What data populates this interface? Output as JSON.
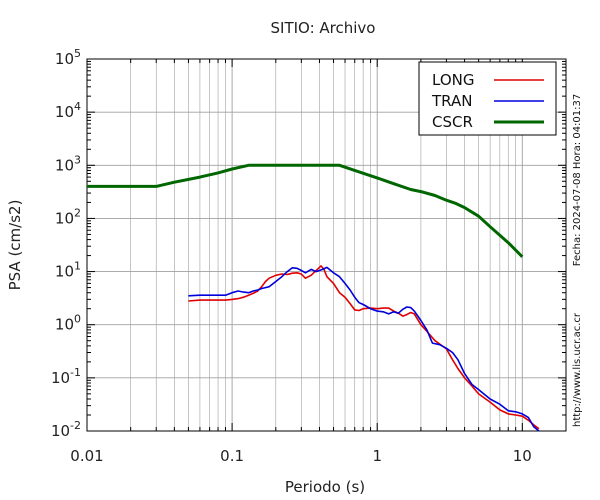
{
  "chart_data": {
    "type": "line",
    "title": "SITIO: Archivo",
    "xlabel": "Periodo (s)",
    "ylabel": "PSA (cm/s2)",
    "xscale": "log",
    "yscale": "log",
    "xlim": [
      0.01,
      20
    ],
    "ylim": [
      0.01,
      100000
    ],
    "grid": true,
    "legend_position": "top-right",
    "x_ticks": [
      {
        "value": 0.01,
        "label": "0.01"
      },
      {
        "value": 0.1,
        "label": "0.1"
      },
      {
        "value": 1,
        "label": "1"
      },
      {
        "value": 10,
        "label": "10"
      }
    ],
    "y_ticks": [
      {
        "value": 0.01,
        "base": "10",
        "exp": "-2"
      },
      {
        "value": 0.1,
        "base": "10",
        "exp": "-1"
      },
      {
        "value": 1,
        "base": "10",
        "exp": "0"
      },
      {
        "value": 10,
        "base": "10",
        "exp": "1"
      },
      {
        "value": 100,
        "base": "10",
        "exp": "2"
      },
      {
        "value": 1000,
        "base": "10",
        "exp": "3"
      },
      {
        "value": 10000,
        "base": "10",
        "exp": "4"
      },
      {
        "value": 100000,
        "base": "10",
        "exp": "5"
      }
    ],
    "series": [
      {
        "name": "LONG",
        "color": "#e00000",
        "points": [
          [
            0.05,
            2.8
          ],
          [
            0.06,
            2.9
          ],
          [
            0.07,
            2.9
          ],
          [
            0.08,
            2.9
          ],
          [
            0.09,
            2.9
          ],
          [
            0.1,
            3.0
          ],
          [
            0.11,
            3.1
          ],
          [
            0.12,
            3.3
          ],
          [
            0.13,
            3.6
          ],
          [
            0.14,
            3.9
          ],
          [
            0.15,
            4.3
          ],
          [
            0.16,
            5.2
          ],
          [
            0.17,
            6.5
          ],
          [
            0.18,
            7.5
          ],
          [
            0.2,
            8.5
          ],
          [
            0.22,
            9.0
          ],
          [
            0.24,
            8.8
          ],
          [
            0.26,
            9.3
          ],
          [
            0.28,
            9.5
          ],
          [
            0.3,
            9.0
          ],
          [
            0.32,
            7.5
          ],
          [
            0.35,
            8.5
          ],
          [
            0.38,
            10.5
          ],
          [
            0.41,
            12.8
          ],
          [
            0.43,
            11.0
          ],
          [
            0.45,
            8.0
          ],
          [
            0.5,
            6.0
          ],
          [
            0.55,
            4.0
          ],
          [
            0.6,
            3.3
          ],
          [
            0.65,
            2.5
          ],
          [
            0.7,
            1.9
          ],
          [
            0.75,
            1.85
          ],
          [
            0.8,
            2.0
          ],
          [
            0.9,
            2.05
          ],
          [
            1.0,
            2.0
          ],
          [
            1.1,
            2.05
          ],
          [
            1.2,
            2.05
          ],
          [
            1.3,
            1.8
          ],
          [
            1.4,
            1.65
          ],
          [
            1.5,
            1.45
          ],
          [
            1.6,
            1.55
          ],
          [
            1.7,
            1.7
          ],
          [
            1.8,
            1.6
          ],
          [
            2.0,
            1.0
          ],
          [
            2.2,
            0.75
          ],
          [
            2.5,
            0.5
          ],
          [
            3.0,
            0.35
          ],
          [
            3.3,
            0.22
          ],
          [
            3.6,
            0.15
          ],
          [
            4.0,
            0.1
          ],
          [
            4.5,
            0.07
          ],
          [
            5.0,
            0.05
          ],
          [
            6.0,
            0.035
          ],
          [
            7.0,
            0.025
          ],
          [
            8.0,
            0.021
          ],
          [
            9.0,
            0.02
          ],
          [
            10.0,
            0.019
          ],
          [
            11.0,
            0.016
          ],
          [
            12.0,
            0.013
          ],
          [
            13.0,
            0.011
          ]
        ]
      },
      {
        "name": "TRAN",
        "color": "#0000dd",
        "points": [
          [
            0.05,
            3.5
          ],
          [
            0.06,
            3.6
          ],
          [
            0.07,
            3.6
          ],
          [
            0.08,
            3.6
          ],
          [
            0.09,
            3.6
          ],
          [
            0.1,
            4.0
          ],
          [
            0.11,
            4.3
          ],
          [
            0.12,
            4.1
          ],
          [
            0.13,
            4.0
          ],
          [
            0.14,
            4.3
          ],
          [
            0.15,
            4.5
          ],
          [
            0.16,
            4.8
          ],
          [
            0.17,
            5.0
          ],
          [
            0.18,
            5.2
          ],
          [
            0.2,
            6.5
          ],
          [
            0.22,
            8.0
          ],
          [
            0.24,
            10.0
          ],
          [
            0.26,
            11.8
          ],
          [
            0.28,
            11.5
          ],
          [
            0.3,
            10.5
          ],
          [
            0.32,
            9.5
          ],
          [
            0.35,
            11.0
          ],
          [
            0.38,
            10.0
          ],
          [
            0.42,
            11.0
          ],
          [
            0.45,
            12.0
          ],
          [
            0.5,
            9.5
          ],
          [
            0.55,
            8.0
          ],
          [
            0.6,
            6.0
          ],
          [
            0.65,
            4.5
          ],
          [
            0.7,
            3.3
          ],
          [
            0.75,
            2.6
          ],
          [
            0.8,
            2.4
          ],
          [
            0.9,
            2.0
          ],
          [
            1.0,
            1.8
          ],
          [
            1.1,
            1.75
          ],
          [
            1.2,
            1.6
          ],
          [
            1.3,
            1.75
          ],
          [
            1.4,
            1.65
          ],
          [
            1.5,
            1.95
          ],
          [
            1.6,
            2.15
          ],
          [
            1.7,
            2.1
          ],
          [
            1.8,
            1.8
          ],
          [
            2.0,
            1.2
          ],
          [
            2.2,
            0.8
          ],
          [
            2.4,
            0.45
          ],
          [
            2.7,
            0.42
          ],
          [
            3.0,
            0.36
          ],
          [
            3.3,
            0.3
          ],
          [
            3.6,
            0.22
          ],
          [
            4.0,
            0.12
          ],
          [
            4.5,
            0.075
          ],
          [
            5.0,
            0.06
          ],
          [
            6.0,
            0.04
          ],
          [
            7.0,
            0.032
          ],
          [
            8.0,
            0.024
          ],
          [
            9.0,
            0.023
          ],
          [
            10.0,
            0.021
          ],
          [
            11.0,
            0.018
          ],
          [
            12.0,
            0.012
          ],
          [
            13.0,
            0.01
          ]
        ]
      },
      {
        "name": "CSCR",
        "color": "#006600",
        "points": [
          [
            0.01,
            400
          ],
          [
            0.03,
            400
          ],
          [
            0.04,
            480
          ],
          [
            0.06,
            600
          ],
          [
            0.08,
            720
          ],
          [
            0.1,
            850
          ],
          [
            0.13,
            1000
          ],
          [
            0.2,
            1000
          ],
          [
            0.3,
            1000
          ],
          [
            0.55,
            1000
          ],
          [
            0.7,
            800
          ],
          [
            1.0,
            580
          ],
          [
            1.3,
            450
          ],
          [
            1.7,
            350
          ],
          [
            2.0,
            320
          ],
          [
            2.5,
            270
          ],
          [
            3.0,
            220
          ],
          [
            3.5,
            190
          ],
          [
            4.0,
            160
          ],
          [
            5.0,
            110
          ],
          [
            6.0,
            70
          ],
          [
            8.0,
            35
          ],
          [
            10.0,
            19
          ]
        ]
      }
    ]
  },
  "side_labels": {
    "date_time": "Fecha: 2024-07-08  Hora: 04:01:37",
    "url": "http://www.lis.ucr.ac.cr"
  }
}
